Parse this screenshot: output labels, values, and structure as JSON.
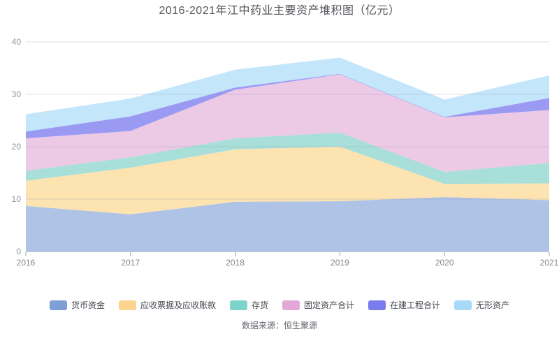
{
  "chart_data": {
    "type": "area",
    "stacked": true,
    "title": "2016-2021年江中药业主要资产堆积图（亿元）",
    "source": "数据来源：恒生聚源",
    "x": [
      "2016",
      "2017",
      "2018",
      "2019",
      "2020",
      "2021"
    ],
    "ylim": [
      0,
      40
    ],
    "yticks": [
      0,
      10,
      20,
      30,
      40
    ],
    "grid": true,
    "legend_position": "bottom",
    "series": [
      {
        "name": "货币资金",
        "color": "#7E9FD6",
        "area": "#AEC3E6",
        "values": [
          8.7,
          7.1,
          9.5,
          9.6,
          10.4,
          9.8
        ]
      },
      {
        "name": "应收票据及应收账款",
        "color": "#FBD48F",
        "area": "#FDE3B0",
        "values": [
          4.8,
          8.9,
          10.0,
          10.4,
          2.5,
          3.2
        ]
      },
      {
        "name": "存货",
        "color": "#7FD4C9",
        "area": "#A8DFD8",
        "values": [
          1.9,
          2.0,
          2.1,
          2.7,
          2.3,
          3.9
        ]
      },
      {
        "name": "固定资产合计",
        "color": "#E2A8D8",
        "area": "#ECC9E5",
        "values": [
          6.2,
          5.0,
          9.3,
          11.1,
          10.4,
          10.1
        ]
      },
      {
        "name": "在建工程合计",
        "color": "#7B7BF0",
        "area": "#9B9AF3",
        "values": [
          1.3,
          2.8,
          0.4,
          0.1,
          0.1,
          2.3
        ]
      },
      {
        "name": "无形资产",
        "color": "#A5DAF9",
        "area": "#C3E6FB",
        "values": [
          3.3,
          3.4,
          3.4,
          3.1,
          3.3,
          4.3
        ]
      }
    ],
    "axis_colors": {
      "grid_line": "rgba(150,160,185,0.32)",
      "axis_line": "#c6c9d1",
      "tick": "#9aa0a8"
    }
  }
}
